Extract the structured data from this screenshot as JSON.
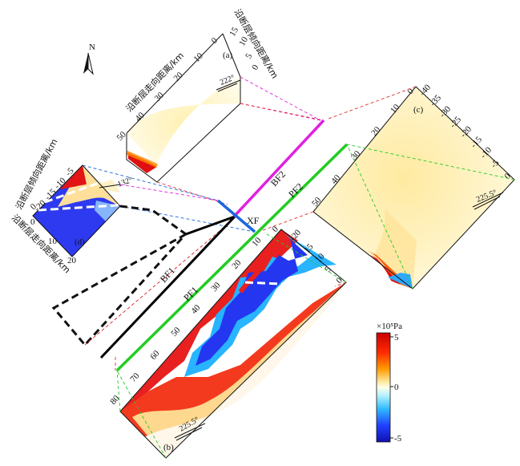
{
  "north_label": "N",
  "panels": {
    "a": {
      "label": "(a)",
      "strike_axis_title": "沿断层走向距离/km",
      "dip_axis_title": "沿断层倾向距离/km",
      "strike_ticks": [
        "50",
        "40",
        "30",
        "20",
        "10",
        "0"
      ],
      "dip_ticks": [
        "15",
        "10",
        "5",
        "0"
      ],
      "angle": "222°"
    },
    "b": {
      "label": "(b)",
      "strike_ticks": [
        "80",
        "70",
        "60",
        "50",
        "40",
        "30",
        "20",
        "10",
        "0"
      ],
      "dip_ticks": [
        "-20",
        "15",
        "10",
        "5",
        "0"
      ],
      "angle": "225.5°"
    },
    "c": {
      "label": "(c)",
      "strike_ticks": [
        "50",
        "40",
        "30",
        "20",
        "10",
        "0"
      ],
      "dip_ticks": [
        "-40",
        "-35",
        "-30",
        "-25",
        "-20",
        "-15",
        "-10",
        "-5",
        "0"
      ],
      "angle": "225.5°"
    },
    "d": {
      "label": "(d)",
      "strike_axis_title": "沿断层走向距离/km",
      "dip_axis_title": "沿断层倾向距离/km",
      "strike_ticks": [
        "0",
        "10",
        "20"
      ],
      "dip_ticks": [
        "0",
        "-5",
        "-10",
        "-15",
        "-20"
      ],
      "angle": "132°"
    }
  },
  "faults": {
    "bf1": "BF1",
    "bf2": "BF2",
    "pf1": "PF1",
    "pf2": "PF2",
    "xf": "XF"
  },
  "colorbar": {
    "unit": "×10⁵Pa",
    "ticks": [
      "5",
      "0",
      "-5"
    ],
    "range": [
      -5,
      5
    ]
  },
  "colors": {
    "bf2": "#e020e0",
    "pf": "#22cc22",
    "xf": "#1a66e0",
    "bf1": "#000000",
    "guide_red": "#e03030"
  }
}
